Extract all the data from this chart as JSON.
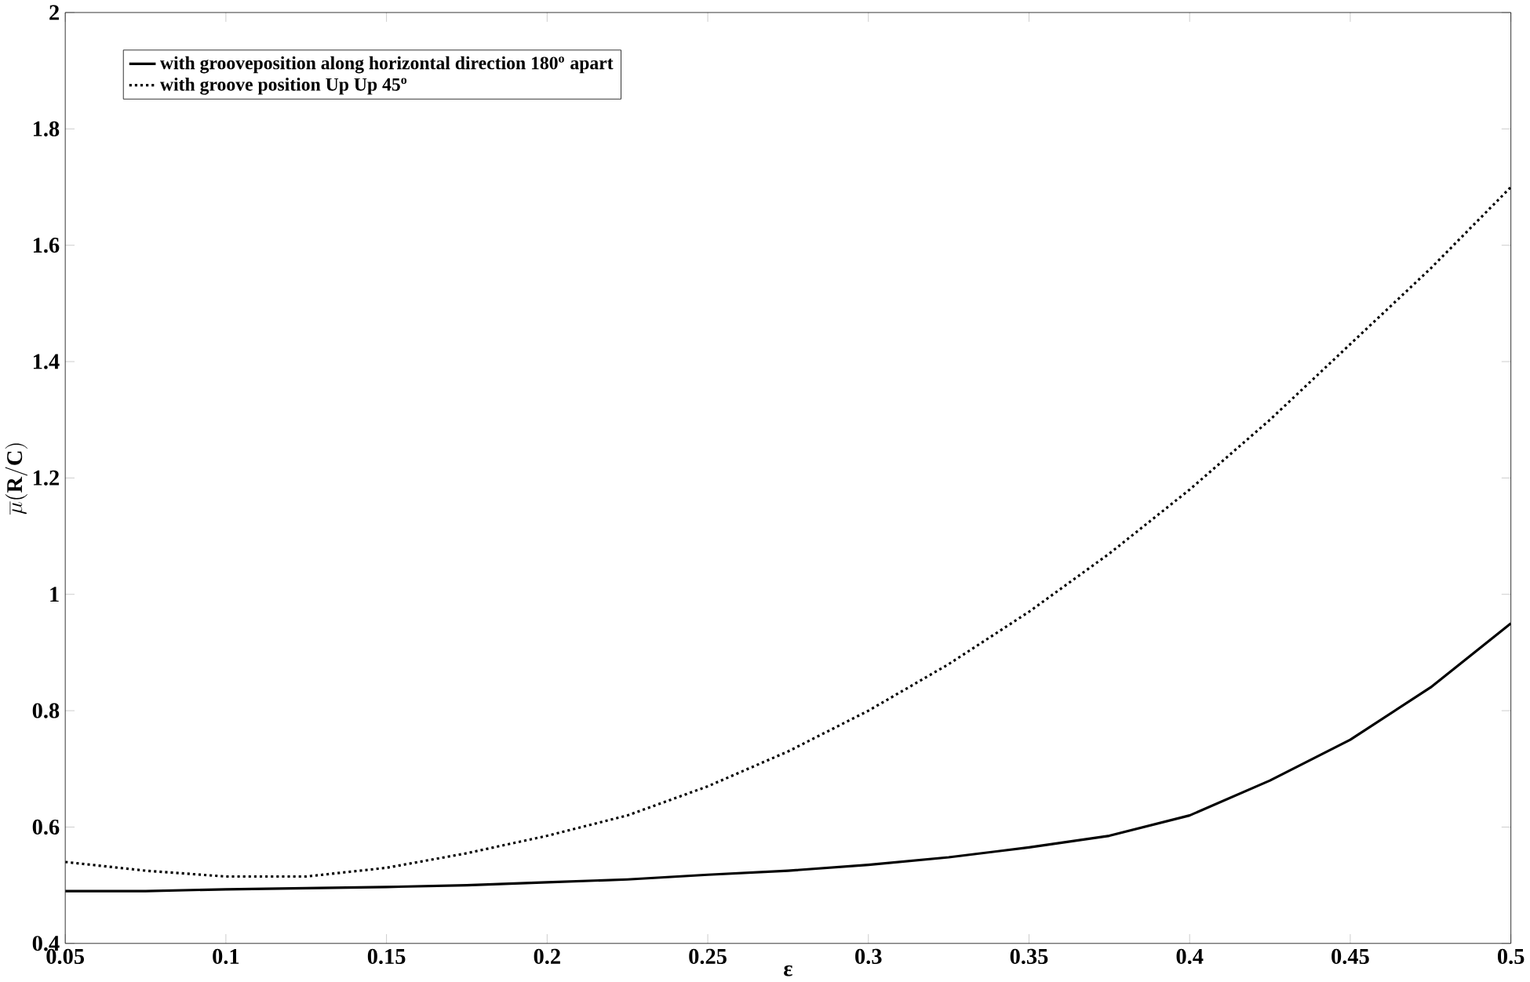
{
  "chart_data": {
    "type": "line",
    "xlabel": "ε",
    "ylabel": "\\overline{\\mu}\\mathbf{(R/C)}",
    "x": [
      0.05,
      0.075,
      0.1,
      0.125,
      0.15,
      0.175,
      0.2,
      0.225,
      0.25,
      0.275,
      0.3,
      0.325,
      0.35,
      0.375,
      0.4,
      0.425,
      0.45,
      0.475,
      0.5
    ],
    "series": [
      {
        "name": "with grooveposition along horizontal direction 180$^{o}$ apart",
        "color": "#000000",
        "line_style": "solid",
        "values": [
          0.49,
          0.49,
          0.493,
          0.495,
          0.497,
          0.5,
          0.505,
          0.51,
          0.518,
          0.525,
          0.535,
          0.548,
          0.565,
          0.585,
          0.62,
          0.68,
          0.75,
          0.84,
          0.95
        ]
      },
      {
        "name": "with groove position Up Up 45$^{o}$",
        "color": "#000000",
        "line_style": "dotted",
        "values": [
          0.54,
          0.525,
          0.515,
          0.515,
          0.53,
          0.555,
          0.585,
          0.62,
          0.67,
          0.73,
          0.8,
          0.88,
          0.97,
          1.07,
          1.18,
          1.3,
          1.43,
          1.56,
          1.7
        ]
      }
    ],
    "xlim": [
      0.05,
      0.5
    ],
    "ylim": [
      0.4,
      2
    ],
    "xticks": [
      0.05,
      0.1,
      0.15,
      0.2,
      0.25,
      0.3,
      0.35,
      0.4,
      0.45,
      0.5
    ],
    "yticks": [
      0.4,
      0.6,
      0.8,
      1,
      1.2,
      1.4,
      1.6,
      1.8,
      2
    ],
    "grid": false,
    "legend": "top left"
  }
}
